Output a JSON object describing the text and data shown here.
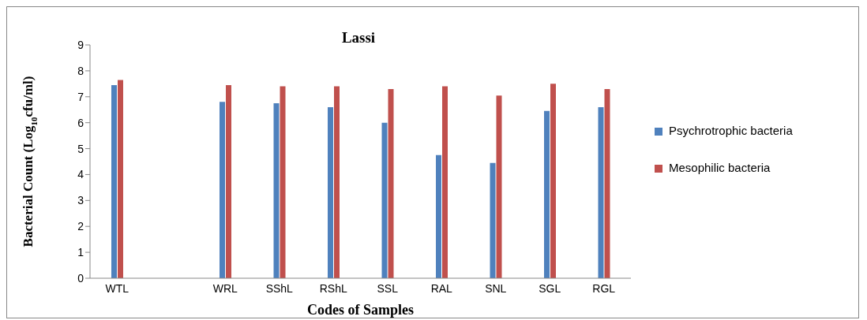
{
  "chart_data": {
    "type": "bar",
    "title": "Lassi",
    "xlabel": "Codes of Samples",
    "ylabel": "Bacterial Count (Log$_{10}$cfu/ml)",
    "categories": [
      "WTL",
      null,
      "WRL",
      "SShL",
      "RShL",
      "SSL",
      "RAL",
      "SNL",
      "SGL",
      "RGL"
    ],
    "series": [
      {
        "name": "Psychrotrophic bacteria",
        "color": "#4f81bd",
        "values": [
          7.45,
          null,
          6.8,
          6.75,
          6.6,
          6.0,
          4.75,
          4.45,
          6.45,
          6.6
        ]
      },
      {
        "name": "Mesophilic bacteria",
        "color": "#c0504d",
        "values": [
          7.65,
          null,
          7.45,
          7.4,
          7.4,
          7.3,
          7.4,
          7.05,
          7.5,
          7.3
        ]
      }
    ],
    "ylim": [
      0,
      9
    ],
    "yticks": [
      0,
      1,
      2,
      3,
      4,
      5,
      6,
      7,
      8,
      9
    ],
    "grid": false,
    "legend": "right"
  }
}
